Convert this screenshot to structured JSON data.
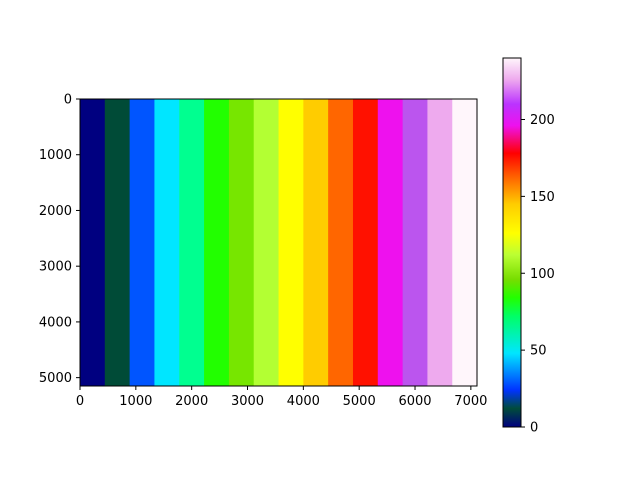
{
  "chart_data": {
    "type": "heatmap",
    "title": "",
    "xlabel": "",
    "ylabel": "",
    "xlim": [
      0,
      7110
    ],
    "ylim": [
      5150,
      0
    ],
    "x_ticks": [
      0,
      1000,
      2000,
      3000,
      4000,
      5000,
      6000,
      7000
    ],
    "y_ticks": [
      0,
      1000,
      2000,
      3000,
      4000,
      5000
    ],
    "x_tick_labels": [
      "0",
      "1000",
      "2000",
      "3000",
      "4000",
      "5000",
      "6000",
      "7000"
    ],
    "y_tick_labels": [
      "0",
      "1000",
      "2000",
      "3000",
      "4000",
      "5000"
    ],
    "bands": [
      {
        "x0": 0,
        "x1": 444,
        "value": 0,
        "color": "#000080"
      },
      {
        "x0": 444,
        "x1": 889,
        "value": 16,
        "color": "#004b37"
      },
      {
        "x0": 889,
        "x1": 1333,
        "value": 32,
        "color": "#0055ff"
      },
      {
        "x0": 1333,
        "x1": 1778,
        "value": 48,
        "color": "#00e6ff"
      },
      {
        "x0": 1778,
        "x1": 2222,
        "value": 64,
        "color": "#00ff90"
      },
      {
        "x0": 2222,
        "x1": 2667,
        "value": 80,
        "color": "#22ff00"
      },
      {
        "x0": 2667,
        "x1": 3111,
        "value": 96,
        "color": "#77e600"
      },
      {
        "x0": 3111,
        "x1": 3556,
        "value": 112,
        "color": "#b3ff33"
      },
      {
        "x0": 3556,
        "x1": 4000,
        "value": 128,
        "color": "#ffff00"
      },
      {
        "x0": 4000,
        "x1": 4444,
        "value": 144,
        "color": "#ffcc00"
      },
      {
        "x0": 4444,
        "x1": 4889,
        "value": 160,
        "color": "#ff6600"
      },
      {
        "x0": 4889,
        "x1": 5333,
        "value": 176,
        "color": "#ff1100"
      },
      {
        "x0": 5333,
        "x1": 5778,
        "value": 192,
        "color": "#ee11ee"
      },
      {
        "x0": 5778,
        "x1": 6222,
        "value": 208,
        "color": "#bb55ee"
      },
      {
        "x0": 6222,
        "x1": 6667,
        "value": 224,
        "color": "#eeaaee"
      },
      {
        "x0": 6667,
        "x1": 7110,
        "value": 240,
        "color": "#fff6fb"
      }
    ],
    "colorbar": {
      "range": [
        0,
        240
      ],
      "ticks": [
        0,
        50,
        100,
        150,
        200
      ],
      "tick_labels": [
        "0",
        "50",
        "100",
        "150",
        "200"
      ],
      "stops": [
        {
          "value": 0,
          "color": "#000080"
        },
        {
          "value": 12,
          "color": "#004c3a"
        },
        {
          "value": 24,
          "color": "#0033ff"
        },
        {
          "value": 48,
          "color": "#00e6ff"
        },
        {
          "value": 72,
          "color": "#00ff66"
        },
        {
          "value": 84,
          "color": "#22ff00"
        },
        {
          "value": 96,
          "color": "#77dd00"
        },
        {
          "value": 112,
          "color": "#bbff33"
        },
        {
          "value": 126,
          "color": "#ffff00"
        },
        {
          "value": 145,
          "color": "#ffcc00"
        },
        {
          "value": 162,
          "color": "#ff6600"
        },
        {
          "value": 178,
          "color": "#ff0000"
        },
        {
          "value": 196,
          "color": "#ee11ee"
        },
        {
          "value": 210,
          "color": "#bb33ff"
        },
        {
          "value": 226,
          "color": "#eeaaee"
        },
        {
          "value": 240,
          "color": "#fff6fb"
        }
      ]
    }
  }
}
